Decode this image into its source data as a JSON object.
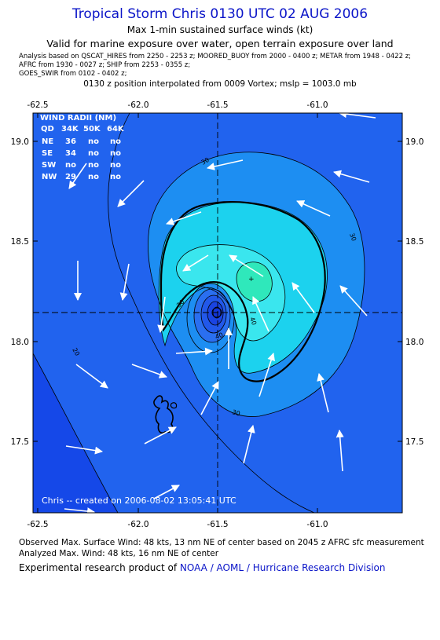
{
  "header": {
    "title": "Tropical Storm Chris 0130 UTC 02 AUG 2006",
    "subtitle": "Max 1-min sustained surface winds (kt)",
    "validity": "Valid for marine exposure over water, open terrain exposure over land",
    "analysis_line1": "Analysis based on   QSCAT_HIRES from 2250 - 2253 z;   MOORED_BUOY from 2000 - 0400 z;   METAR from 1948 - 0422 z;",
    "analysis_line2": "AFRC from 1930 - 0027 z;   SHIP from 2253 - 0355 z;",
    "analysis_line3": "GOES_SWIR from 0102 - 0402 z;",
    "position_note": "0130 z position interpolated from 0009 Vortex; mslp = 1003.0 mb"
  },
  "axes": {
    "lon_ticks": [
      "-62.5",
      "-62.0",
      "-61.5",
      "-61.0"
    ],
    "lat_ticks": [
      "19.0",
      "18.5",
      "18.0",
      "17.5"
    ]
  },
  "wind_radii": {
    "title": "WIND RADII (NM)",
    "header": [
      "QD",
      "34K",
      "50K",
      "64K"
    ],
    "rows": [
      [
        "NE",
        "36",
        "no",
        "no"
      ],
      [
        "SE",
        "34",
        "no",
        "no"
      ],
      [
        "SW",
        "no",
        "no",
        "no"
      ],
      [
        "NW",
        "29",
        "no",
        "no"
      ]
    ]
  },
  "contour_labels": [
    "20",
    "30",
    "30",
    "30",
    "30",
    "40",
    "40"
  ],
  "credit": "Chris -- created on 2006-08-02 13:05:41 UTC",
  "footer": {
    "observed": "Observed Max. Surface Wind: 48 kts, 13 nm NE of center based on 2045 z AFRC sfc measurement",
    "analyzed": "Analyzed Max. Wind: 48 kts, 16 nm NE of center",
    "product_prefix": "Experimental research product of ",
    "product_org": "NOAA / AOML / Hurricane Research Division"
  },
  "colors": {
    "deep_blue": "#1548e8",
    "blue_20": "#2163ee",
    "blue_30": "#1d8ef2",
    "cyan_35": "#17b8f0",
    "cyan_40": "#1cd2ee",
    "teal_max": "#2fe8bb",
    "title_blue": "#0a14c8"
  }
}
